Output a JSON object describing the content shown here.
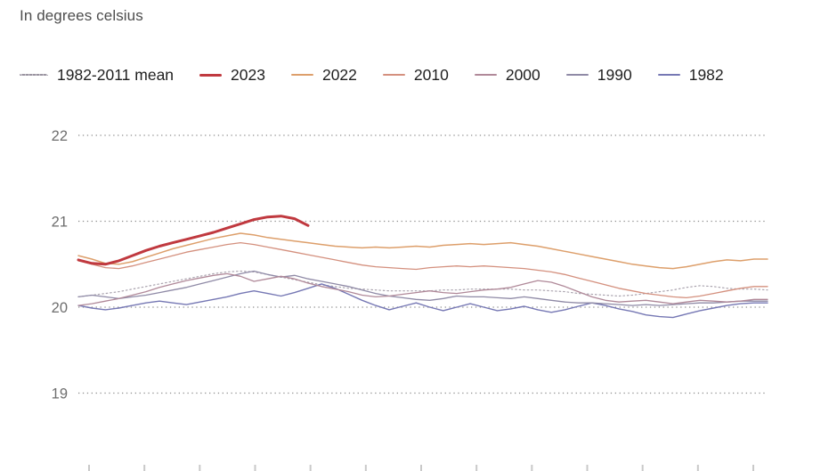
{
  "header": {
    "title": "In degrees celsius"
  },
  "legend": {
    "items": [
      {
        "label": "1982-2011 mean",
        "color": "#9a94a0",
        "style": "dotted"
      },
      {
        "label": "2023",
        "color": "#c0393f",
        "style": "thick"
      },
      {
        "label": "2022",
        "color": "#dd9f6b",
        "style": "solid"
      },
      {
        "label": "2010",
        "color": "#d4907e",
        "style": "solid"
      },
      {
        "label": "2000",
        "color": "#b08999",
        "style": "solid"
      },
      {
        "label": "1990",
        "color": "#8f8aa6",
        "style": "solid"
      },
      {
        "label": "1982",
        "color": "#7678b4",
        "style": "solid"
      }
    ]
  },
  "chart_data": {
    "type": "line",
    "title": "In degrees celsius",
    "xlabel": "",
    "ylabel": "",
    "x_unit": "week of year (Jan-Dec, axis labels cropped at bottom edge)",
    "x_range_weeks": [
      0,
      51
    ],
    "y_ticks": [
      22,
      21,
      20,
      19
    ],
    "ylim": [
      18.75,
      22.3
    ],
    "grid": "dotted horizontal gridlines at each integer degree",
    "legend_position": "top",
    "x_axis_tick_count": 13,
    "gridline_color": "#8d8d8d",
    "bottom_tick_color": "#c9c9c9",
    "series": [
      {
        "name": "1982-2011 mean",
        "color": "#a9a2ad",
        "line_style": "dotted",
        "line_width": 1.2,
        "values": [
          20.12,
          20.14,
          20.16,
          20.18,
          20.21,
          20.24,
          20.27,
          20.3,
          20.33,
          20.36,
          20.39,
          20.41,
          20.42,
          20.41,
          20.38,
          20.35,
          20.32,
          20.29,
          20.26,
          20.24,
          20.22,
          20.21,
          20.2,
          20.19,
          20.19,
          20.19,
          20.19,
          20.2,
          20.2,
          20.21,
          20.21,
          20.21,
          20.21,
          20.2,
          20.2,
          20.19,
          20.18,
          20.16,
          20.15,
          20.14,
          20.13,
          20.14,
          20.16,
          20.18,
          20.2,
          20.23,
          20.25,
          20.24,
          20.22,
          20.21,
          20.21,
          20.2
        ]
      },
      {
        "name": "1982",
        "color": "#7678b4",
        "line_style": "solid",
        "line_width": 1.4,
        "values": [
          20.02,
          19.99,
          19.97,
          19.99,
          20.02,
          20.05,
          20.07,
          20.05,
          20.03,
          20.06,
          20.09,
          20.12,
          20.16,
          20.19,
          20.16,
          20.13,
          20.17,
          20.22,
          20.27,
          20.22,
          20.15,
          20.08,
          20.02,
          19.97,
          20.01,
          20.05,
          20.0,
          19.96,
          20.0,
          20.04,
          20.0,
          19.96,
          19.98,
          20.01,
          19.97,
          19.94,
          19.97,
          20.01,
          20.05,
          20.02,
          19.98,
          19.95,
          19.91,
          19.89,
          19.88,
          19.92,
          19.96,
          19.99,
          20.02,
          20.04,
          20.05,
          20.05
        ]
      },
      {
        "name": "1990",
        "color": "#8f8aa6",
        "line_style": "solid",
        "line_width": 1.3,
        "values": [
          20.12,
          20.14,
          20.12,
          20.1,
          20.12,
          20.14,
          20.17,
          20.2,
          20.23,
          20.27,
          20.31,
          20.35,
          20.39,
          20.42,
          20.38,
          20.35,
          20.37,
          20.33,
          20.3,
          20.27,
          20.24,
          20.2,
          20.16,
          20.13,
          20.11,
          20.09,
          20.08,
          20.1,
          20.13,
          20.12,
          20.12,
          20.11,
          20.1,
          20.12,
          20.1,
          20.08,
          20.06,
          20.05,
          20.05,
          20.04,
          20.03,
          20.02,
          20.03,
          20.02,
          20.03,
          20.04,
          20.05,
          20.05,
          20.06,
          20.07,
          20.07,
          20.07
        ]
      },
      {
        "name": "2000",
        "color": "#b08999",
        "line_style": "solid",
        "line_width": 1.3,
        "values": [
          20.02,
          20.04,
          20.07,
          20.1,
          20.14,
          20.18,
          20.23,
          20.27,
          20.31,
          20.34,
          20.37,
          20.39,
          20.36,
          20.3,
          20.33,
          20.36,
          20.33,
          20.28,
          20.24,
          20.21,
          20.18,
          20.14,
          20.12,
          20.13,
          20.15,
          20.17,
          20.19,
          20.17,
          20.16,
          20.18,
          20.2,
          20.21,
          20.23,
          20.27,
          20.31,
          20.29,
          20.24,
          20.18,
          20.12,
          20.08,
          20.06,
          20.07,
          20.08,
          20.06,
          20.04,
          20.06,
          20.08,
          20.07,
          20.06,
          20.07,
          20.09,
          20.09
        ]
      },
      {
        "name": "2010",
        "color": "#d4907e",
        "line_style": "solid",
        "line_width": 1.3,
        "values": [
          20.54,
          20.5,
          20.46,
          20.45,
          20.48,
          20.52,
          20.56,
          20.6,
          20.64,
          20.67,
          20.7,
          20.73,
          20.75,
          20.73,
          20.7,
          20.67,
          20.64,
          20.61,
          20.58,
          20.55,
          20.52,
          20.49,
          20.47,
          20.46,
          20.45,
          20.44,
          20.46,
          20.47,
          20.48,
          20.47,
          20.48,
          20.47,
          20.46,
          20.45,
          20.43,
          20.41,
          20.38,
          20.34,
          20.3,
          20.26,
          20.22,
          20.19,
          20.16,
          20.14,
          20.12,
          20.11,
          20.13,
          20.16,
          20.19,
          20.22,
          20.24,
          20.24
        ]
      },
      {
        "name": "2022",
        "color": "#dd9f6b",
        "line_style": "solid",
        "line_width": 1.5,
        "values": [
          20.6,
          20.56,
          20.51,
          20.5,
          20.53,
          20.58,
          20.63,
          20.68,
          20.72,
          20.76,
          20.8,
          20.83,
          20.86,
          20.84,
          20.81,
          20.79,
          20.77,
          20.75,
          20.73,
          20.71,
          20.7,
          20.69,
          20.7,
          20.69,
          20.7,
          20.71,
          20.7,
          20.72,
          20.73,
          20.74,
          20.73,
          20.74,
          20.75,
          20.73,
          20.71,
          20.68,
          20.65,
          20.62,
          20.59,
          20.56,
          20.53,
          20.5,
          20.48,
          20.46,
          20.45,
          20.47,
          20.5,
          20.53,
          20.55,
          20.54,
          20.56,
          20.56
        ]
      },
      {
        "name": "2023",
        "color": "#c0393f",
        "line_style": "solid",
        "line_width": 3,
        "values": [
          20.55,
          20.51,
          20.5,
          20.54,
          20.6,
          20.66,
          20.71,
          20.75,
          20.79,
          20.83,
          20.87,
          20.92,
          20.97,
          21.02,
          21.05,
          21.06,
          21.03,
          20.95
        ]
      }
    ]
  }
}
